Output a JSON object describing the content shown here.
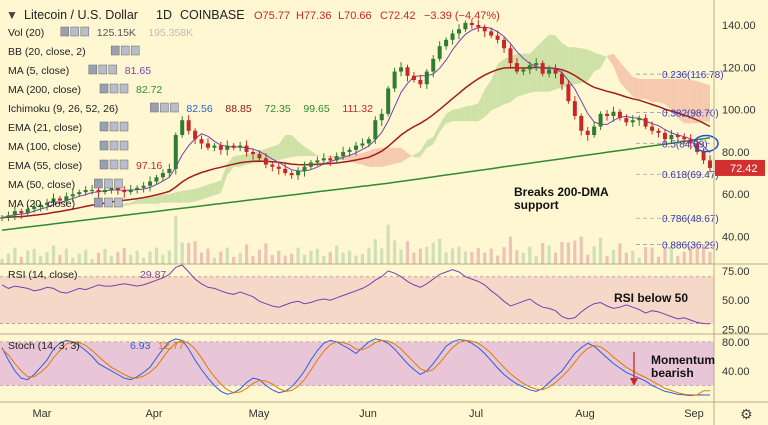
{
  "header": {
    "title": "Litecoin / U.S. Dollar",
    "interval": "1D",
    "exchange": "COINBASE",
    "open": "O75.77",
    "high": "H77.36",
    "low": "L70.66",
    "close": "C72.42",
    "change": "−3.39 (−4.47%)"
  },
  "indicators": [
    {
      "label": "Vol (20)",
      "values": [
        "125.15K",
        "195.358K"
      ],
      "colors": [
        "#555555",
        "#bdbdbd"
      ]
    },
    {
      "label": "BB (20, close, 2)",
      "values": [],
      "colors": []
    },
    {
      "label": "MA (5, close)",
      "values": [
        "81.65"
      ],
      "colors": [
        "#7b3fb0"
      ]
    },
    {
      "label": "MA (200, close)",
      "values": [
        "82.72"
      ],
      "colors": [
        "#2e8b2e"
      ]
    },
    {
      "label": "Ichimoku (9, 26, 52, 26)",
      "values": [
        "82.56",
        "88.85",
        "72.35",
        "99.65",
        "111.32"
      ],
      "colors": [
        "#2b5fd9",
        "#8b1a1a",
        "#2e8b2e",
        "#2e8b2e",
        "#c62828"
      ]
    },
    {
      "label": "EMA (21, close)",
      "values": [],
      "colors": []
    },
    {
      "label": "MA (100, close)",
      "values": [],
      "colors": []
    },
    {
      "label": "EMA (55, close)",
      "values": [
        "97.16"
      ],
      "colors": [
        "#c62828"
      ]
    },
    {
      "label": "MA (50, close)",
      "values": [],
      "colors": []
    },
    {
      "label": "MA (20, close)",
      "values": [],
      "colors": []
    }
  ],
  "annotations": {
    "dma_break": "Breaks 200-DMA\nsupport",
    "rsi_note": "RSI below 50",
    "momentum_note": "Momentum\nbearish"
  },
  "rsi_panel": {
    "label": "RSI (14, close)",
    "value": "29.87",
    "value_color": "#7b3fb0"
  },
  "stoch_panel": {
    "label": "Stoch (14, 3, 3)",
    "values": [
      "6.93",
      "12.77"
    ],
    "colors": [
      "#2b5fd9",
      "#e07b00"
    ]
  },
  "colors": {
    "background": "#fff7d2",
    "bull": "#2e7d32",
    "bear": "#c62828",
    "ma200": "#2e8b2e",
    "ema55": "#a11d1d",
    "ma5": "#7b3fb0",
    "cloud_green": "#c5dea0",
    "cloud_red": "#f5c2a8",
    "price_badge": "#d32f2f",
    "rsi_band": "#f6d8c8",
    "stoch_band": "#e8c6d8",
    "fib": "#3a3ab0"
  },
  "chart_data": {
    "type": "candlestick",
    "main": {
      "y_axis": {
        "ticks": [
          40,
          60,
          80,
          100,
          120,
          140
        ],
        "ylim": [
          27,
          149
        ]
      },
      "x_axis": {
        "ticks": [
          "Mar",
          "Apr",
          "May",
          "Jun",
          "Jul",
          "Aug",
          "Sep"
        ]
      },
      "last_price": "72.42",
      "fib_levels": [
        {
          "label": "0.236(116.78)",
          "value": 116.78
        },
        {
          "label": "0.382(98.70)",
          "value": 98.7
        },
        {
          "label": "0.5(84.09)",
          "value": 84.09
        },
        {
          "label": "0.618(69.47)",
          "value": 69.47
        },
        {
          "label": "0.786(48.67)",
          "value": 48.67
        },
        {
          "label": "0.886(36.29)",
          "value": 36.29
        }
      ],
      "closes": [
        49,
        50,
        52,
        51,
        53,
        54,
        55,
        56,
        58,
        57,
        59,
        60,
        61,
        62,
        62,
        61,
        62,
        63,
        62,
        61,
        62,
        63,
        64,
        66,
        68,
        70,
        72,
        88,
        95,
        90,
        86,
        84,
        82,
        83,
        81,
        83,
        82,
        83,
        80,
        79,
        77,
        74,
        73,
        72,
        70,
        69,
        71,
        73,
        75,
        76,
        77,
        76,
        78,
        80,
        81,
        83,
        84,
        86,
        95,
        98,
        110,
        118,
        120,
        116,
        114,
        112,
        118,
        124,
        130,
        133,
        136,
        138,
        141,
        140,
        139,
        137,
        135,
        133,
        129,
        122,
        118,
        119,
        121,
        122,
        117,
        119,
        117,
        112,
        104,
        97,
        90,
        88,
        92,
        98,
        97,
        99,
        96,
        94,
        95,
        96,
        92,
        90,
        89,
        86,
        88,
        87,
        86,
        84,
        80,
        76,
        72.42
      ]
    },
    "rsi": {
      "y_axis": {
        "ticks": [
          25,
          50,
          75
        ],
        "ylim": [
          22,
          80
        ]
      },
      "band": [
        30,
        70
      ],
      "values": [
        63,
        60,
        62,
        61,
        60,
        58,
        59,
        61,
        60,
        57,
        56,
        58,
        60,
        59,
        61,
        63,
        62,
        62,
        63,
        64,
        63,
        62,
        63,
        65,
        67,
        69,
        72,
        78,
        80,
        74,
        68,
        64,
        61,
        60,
        58,
        56,
        55,
        57,
        55,
        53,
        49,
        47,
        45,
        44,
        46,
        48,
        49,
        47,
        48,
        50,
        51,
        50,
        52,
        54,
        56,
        58,
        60,
        63,
        67,
        70,
        75,
        73,
        70,
        66,
        63,
        61,
        64,
        68,
        72,
        74,
        76,
        74,
        70,
        68,
        66,
        63,
        58,
        54,
        49,
        45,
        47,
        49,
        51,
        47,
        44,
        43,
        41,
        36,
        34,
        35,
        40,
        44,
        47,
        48,
        45,
        43,
        44,
        46,
        44,
        42,
        39,
        41,
        40,
        38,
        36,
        34,
        35,
        33,
        31,
        30,
        29.87
      ]
    },
    "stoch": {
      "y_axis": {
        "ticks": [
          40,
          80
        ],
        "ylim": [
          0,
          88
        ]
      },
      "band": [
        20,
        80
      ],
      "k": [
        72,
        55,
        40,
        30,
        28,
        35,
        45,
        55,
        70,
        78,
        82,
        80,
        75,
        68,
        60,
        50,
        45,
        40,
        35,
        30,
        28,
        32,
        38,
        45,
        58,
        70,
        80,
        84,
        82,
        70,
        55,
        42,
        30,
        20,
        12,
        8,
        10,
        15,
        24,
        30,
        28,
        20,
        14,
        10,
        12,
        18,
        28,
        40,
        55,
        68,
        78,
        82,
        80,
        75,
        70,
        64,
        72,
        80,
        84,
        82,
        78,
        70,
        60,
        50,
        42,
        35,
        40,
        50,
        62,
        74,
        80,
        83,
        82,
        78,
        72,
        64,
        54,
        44,
        35,
        28,
        22,
        18,
        14,
        12,
        16,
        24,
        32,
        40,
        52,
        64,
        72,
        78,
        74,
        66,
        58,
        50,
        44,
        38,
        34,
        30,
        26,
        20,
        16,
        12,
        10,
        8,
        7,
        6,
        7,
        6.93,
        6.93
      ],
      "d": [
        70,
        62,
        50,
        40,
        32,
        32,
        38,
        46,
        58,
        68,
        77,
        80,
        79,
        75,
        68,
        60,
        52,
        45,
        40,
        35,
        31,
        30,
        33,
        38,
        46,
        58,
        70,
        78,
        82,
        78,
        70,
        58,
        44,
        32,
        22,
        14,
        10,
        11,
        16,
        23,
        27,
        26,
        22,
        16,
        12,
        13,
        19,
        28,
        41,
        55,
        67,
        76,
        80,
        79,
        76,
        70,
        69,
        73,
        79,
        82,
        81,
        77,
        70,
        61,
        52,
        43,
        39,
        42,
        51,
        62,
        72,
        79,
        82,
        81,
        78,
        72,
        64,
        54,
        45,
        36,
        29,
        23,
        18,
        15,
        14,
        18,
        24,
        32,
        41,
        52,
        63,
        71,
        75,
        73,
        67,
        59,
        52,
        45,
        40,
        35,
        31,
        26,
        21,
        16,
        13,
        10,
        8,
        7,
        7,
        12.77,
        12.77
      ]
    }
  }
}
